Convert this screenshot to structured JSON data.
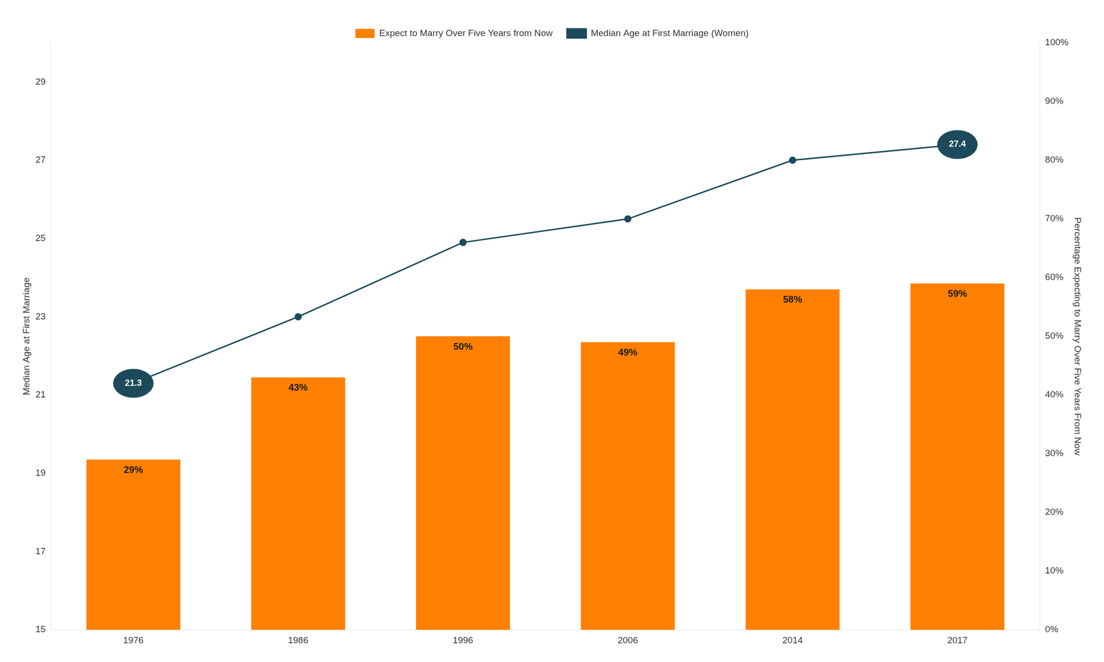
{
  "chart_data": {
    "type": "bar",
    "categories": [
      "1976",
      "1986",
      "1996",
      "2006",
      "2014",
      "2017"
    ],
    "series": [
      {
        "name": "Expect to Marry Over Five Years from Now",
        "type": "bar",
        "color": "#FF8000",
        "axis": "y2",
        "values": [
          29,
          43,
          50,
          49,
          58,
          59
        ],
        "value_labels": [
          "29%",
          "43%",
          "50%",
          "49%",
          "58%",
          "59%"
        ],
        "data_labels": true
      },
      {
        "name": "Median Age at First Marriage (Women)",
        "type": "line",
        "color": "#1C4A5A",
        "marker": "circle",
        "line_style": "solid",
        "values": [
          21.3,
          23.0,
          24.9,
          25.5,
          27.0,
          27.4
        ]
      }
    ],
    "ylabel": "Median Age at First Marriage",
    "y2label": "Percentage Expecting to Marry Over Five Years From Now",
    "ylim": [
      15,
      30
    ],
    "yticks": [
      15,
      17,
      19,
      21,
      23,
      25,
      27,
      29
    ],
    "y2lim": [
      0,
      100
    ],
    "y2ticks": [
      {
        "value": 0,
        "label": "0%"
      },
      {
        "value": 10,
        "label": "10%"
      },
      {
        "value": 20,
        "label": "20%"
      },
      {
        "value": 30,
        "label": "30%"
      },
      {
        "value": 40,
        "label": "40%"
      },
      {
        "value": 50,
        "label": "50%"
      },
      {
        "value": 60,
        "label": "60%"
      },
      {
        "value": 70,
        "label": "70%"
      },
      {
        "value": 80,
        "label": "80%"
      },
      {
        "value": 90,
        "label": "90%"
      },
      {
        "value": 100,
        "label": "100%"
      }
    ],
    "annotations": [
      {
        "text": "21.3",
        "x": "1976",
        "y": 21.3
      },
      {
        "text": "27.4",
        "x": "2017",
        "y": 27.4
      }
    ],
    "legend": "top",
    "grid": false
  }
}
